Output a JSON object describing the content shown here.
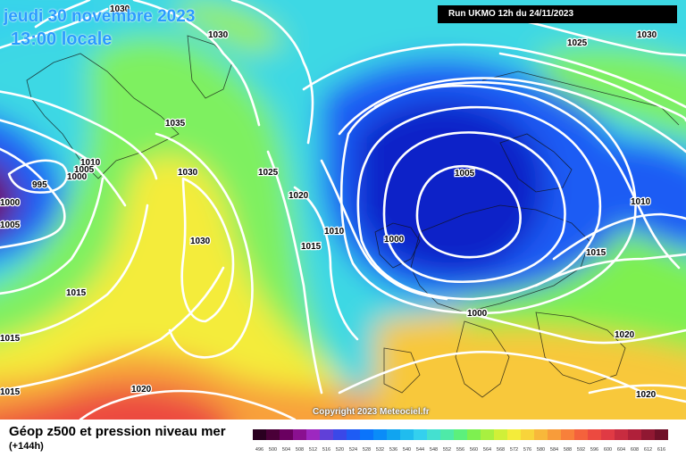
{
  "header": {
    "date": "jeudi 30 novembre 2023",
    "time": "13:00 locale",
    "run": "Run UKMO 12h du 24/11/2023"
  },
  "copyright": "Copyright 2023 Meteociel.fr",
  "footer": {
    "title": "Géop z500 et pression niveau mer",
    "subtitle": "(+144h)"
  },
  "legend": {
    "values": [
      "496",
      "500",
      "504",
      "508",
      "512",
      "516",
      "520",
      "524",
      "528",
      "532",
      "536",
      "540",
      "544",
      "548",
      "552",
      "556",
      "560",
      "564",
      "568",
      "572",
      "576",
      "580",
      "584",
      "588",
      "592",
      "596",
      "600",
      "604",
      "608",
      "612",
      "616"
    ],
    "colors": [
      "#2a0020",
      "#4a0038",
      "#6a0060",
      "#8a1090",
      "#9d28c0",
      "#6040d8",
      "#3a48e8",
      "#1e5cf4",
      "#0a74fb",
      "#0a8cf8",
      "#10a4f0",
      "#20bcee",
      "#34d0ee",
      "#44e0d0",
      "#4eeaa8",
      "#5cf07c",
      "#7ef050",
      "#a8f040",
      "#d0f038",
      "#f4ec3a",
      "#f8d43a",
      "#f8b83a",
      "#f89c3a",
      "#f8803a",
      "#f4623c",
      "#ec4a40",
      "#e03a44",
      "#c82c40",
      "#b0203a",
      "#901832",
      "#701028"
    ]
  },
  "isobars": [
    {
      "label": "1030"
    },
    {
      "label": "1030"
    },
    {
      "label": "1025"
    },
    {
      "label": "1030"
    },
    {
      "label": "1035"
    },
    {
      "label": "1010"
    },
    {
      "label": "1005"
    },
    {
      "label": "1000"
    },
    {
      "label": "995"
    },
    {
      "label": "1000"
    },
    {
      "label": "1005"
    },
    {
      "label": "1030"
    },
    {
      "label": "1025"
    },
    {
      "label": "1020"
    },
    {
      "label": "1030"
    },
    {
      "label": "1010"
    },
    {
      "label": "1015"
    },
    {
      "label": "1005"
    },
    {
      "label": "1000"
    },
    {
      "label": "1010"
    },
    {
      "label": "1015"
    },
    {
      "label": "1015"
    },
    {
      "label": "1000"
    },
    {
      "label": "1015"
    },
    {
      "label": "1020"
    },
    {
      "label": "1015"
    },
    {
      "label": "1020"
    },
    {
      "label": "1020"
    }
  ]
}
